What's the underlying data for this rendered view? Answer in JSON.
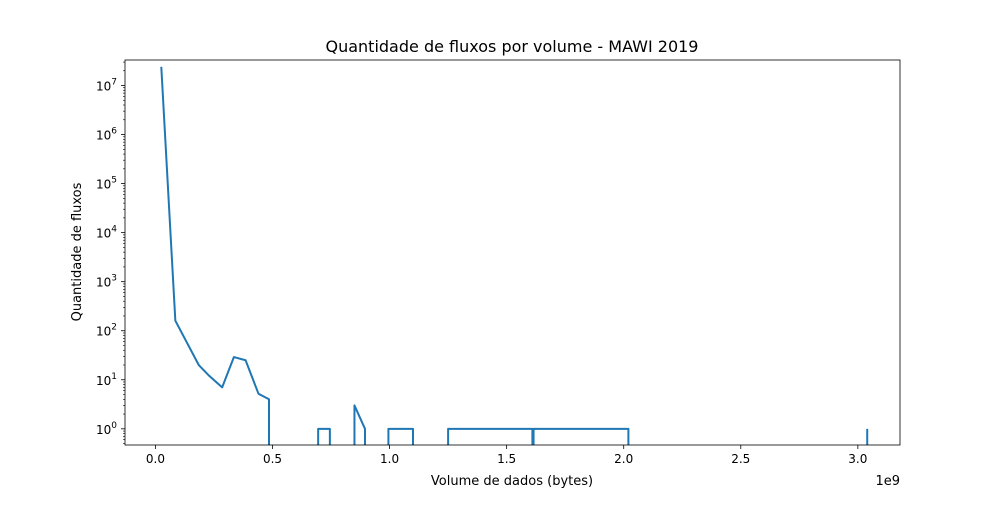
{
  "chart_data": {
    "type": "line",
    "title": "Quantidade de fluxos por volume - MAWI 2019",
    "xlabel": "Volume de dados (bytes)",
    "ylabel": "Quantidade de fluxos",
    "x_offset_label": "1e9",
    "xscale": "linear",
    "yscale": "log",
    "xlim": [
      -0.13,
      3.18
    ],
    "ylim_exp": [
      -0.33,
      7.52
    ],
    "x_ticks": [
      {
        "value": 0.0,
        "label": "0.0"
      },
      {
        "value": 0.5,
        "label": "0.5"
      },
      {
        "value": 1.0,
        "label": "1.0"
      },
      {
        "value": 1.5,
        "label": "1.5"
      },
      {
        "value": 2.0,
        "label": "2.0"
      },
      {
        "value": 2.5,
        "label": "2.5"
      },
      {
        "value": 3.0,
        "label": "3.0"
      }
    ],
    "y_ticks": [
      {
        "exp": 0,
        "base": "10",
        "sup": "0"
      },
      {
        "exp": 1,
        "base": "10",
        "sup": "1"
      },
      {
        "exp": 2,
        "base": "10",
        "sup": "2"
      },
      {
        "exp": 3,
        "base": "10",
        "sup": "3"
      },
      {
        "exp": 4,
        "base": "10",
        "sup": "4"
      },
      {
        "exp": 5,
        "base": "10",
        "sup": "5"
      },
      {
        "exp": 6,
        "base": "10",
        "sup": "6"
      },
      {
        "exp": 7,
        "base": "10",
        "sup": "7"
      }
    ],
    "grid": false,
    "series": [
      {
        "color": "#1f77b4",
        "x": [
          0.025,
          0.085,
          0.185,
          0.23,
          0.285,
          0.335,
          0.385,
          0.44,
          0.485,
          0.485,
          0.695,
          0.695,
          0.745,
          0.745,
          0.85,
          0.85,
          0.895,
          0.895,
          0.995,
          0.995,
          1.1,
          1.1,
          1.25,
          1.25,
          1.61,
          1.61,
          1.615,
          1.615,
          2.02,
          2.02,
          3.04,
          3.04
        ],
        "y": [
          24000000,
          160,
          20,
          12,
          7,
          29,
          25,
          5.2,
          4,
          0.1,
          0.1,
          1,
          1,
          0.1,
          0.1,
          3,
          1,
          0.1,
          0.1,
          1,
          1,
          0.1,
          0.1,
          1,
          1,
          0.1,
          0.1,
          1,
          1,
          0.1,
          0.1,
          1
        ]
      }
    ]
  }
}
